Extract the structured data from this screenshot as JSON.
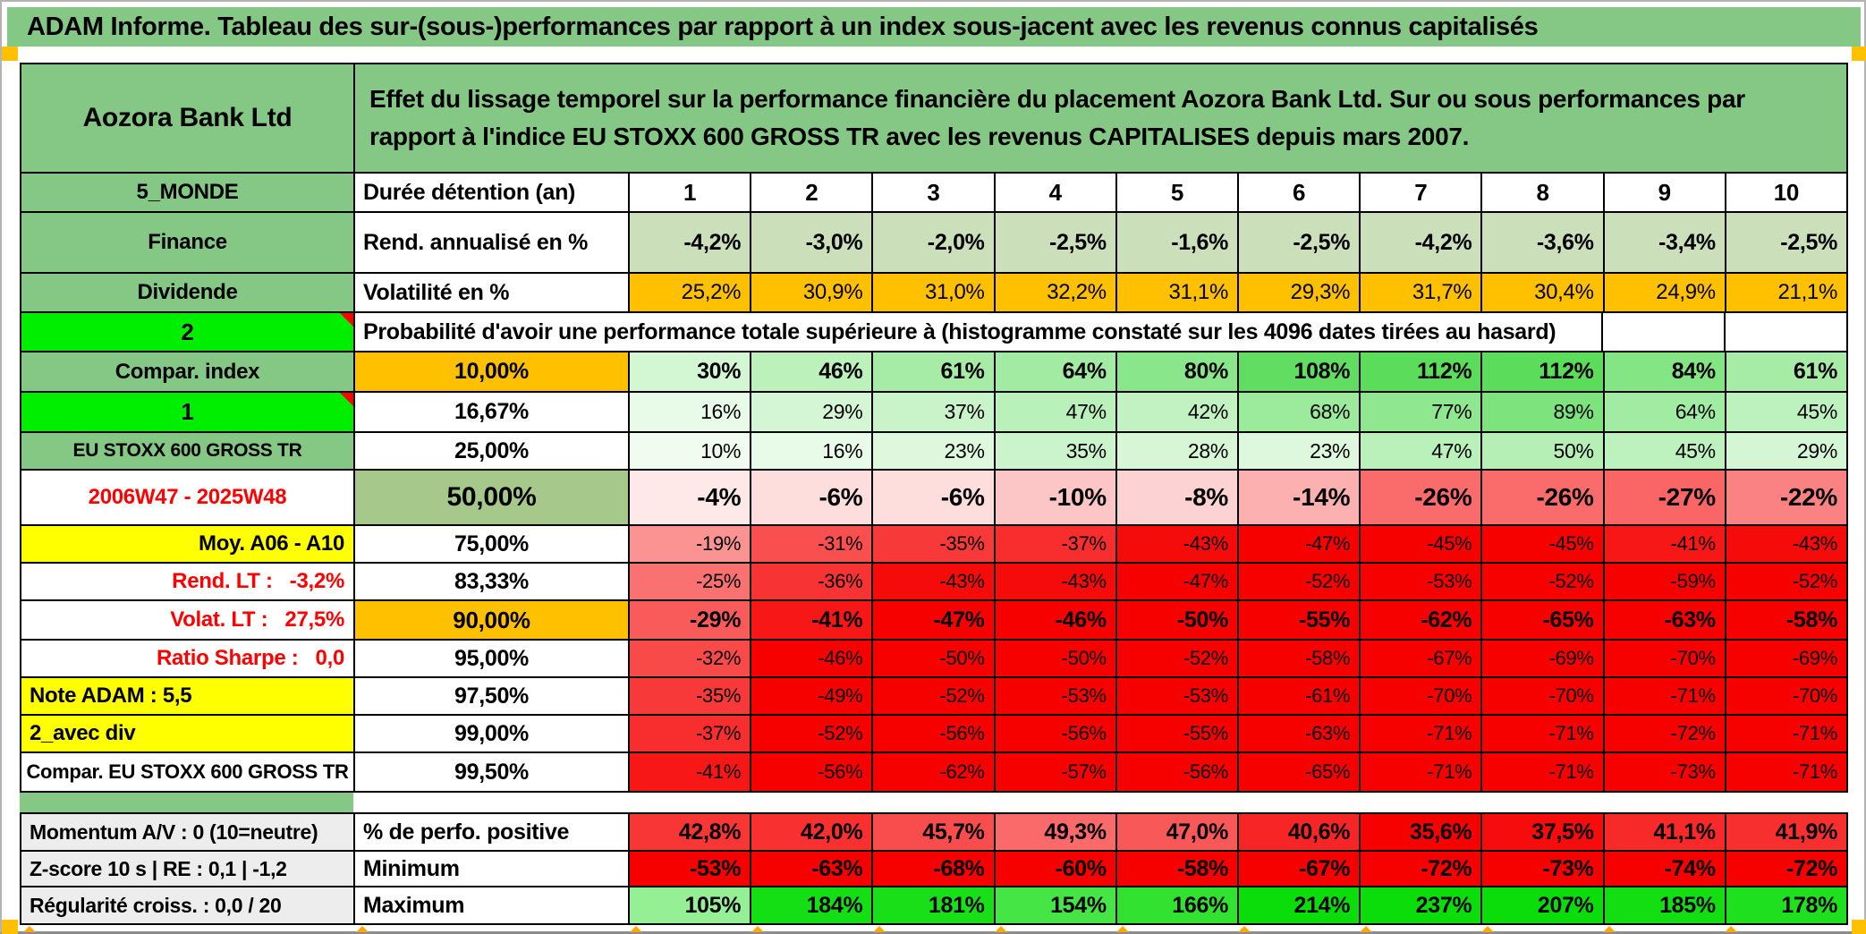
{
  "title": "ADAM Informe. Tableau des sur-(sous-)performances par rapport à un index sous-jacent avec les revenus connus capitalisés",
  "header": {
    "name": "Aozora Bank Ltd",
    "description": "Effet du lissage temporel sur la performance financière du placement Aozora Bank Ltd. Sur ou sous performances par rapport à l'indice EU STOXX 600 GROSS TR avec les revenus CAPITALISES depuis mars 2007."
  },
  "colors": {
    "green_header": "#85C785",
    "green_bright": "#00EE00",
    "green_band": "#A6C98B",
    "green_row": "#CBE0BA",
    "orange": "#FFC000",
    "yellow": "#FFFF00",
    "gray_label": "#EDEDED",
    "red_full": "#F60000",
    "green_pos_end": "#57DB57",
    "green_max_end": "#0ADD0A",
    "red_text": "#FF0000",
    "marker_orange": "#FFA800"
  },
  "rows": [
    {
      "key": "duration",
      "section": "main",
      "label": "5_MONDE",
      "labelBg": "medium",
      "metric": "Durée détention (an)",
      "metricAlign": "left",
      "fill": "white",
      "values": [
        "1",
        "2",
        "3",
        "4",
        "5",
        "6",
        "7",
        "8",
        "9",
        "10"
      ]
    },
    {
      "key": "annual",
      "section": "main",
      "label": "Finance",
      "labelBg": "medium",
      "metric": "Rend. annualisé en %",
      "metricAlign": "left",
      "fill": "lightgreen",
      "values": [
        "-4,2%",
        "-3,0%",
        "-2,0%",
        "-2,5%",
        "-1,6%",
        "-2,5%",
        "-4,2%",
        "-3,6%",
        "-3,4%",
        "-2,5%"
      ]
    },
    {
      "key": "vol",
      "section": "main",
      "label": "Dividende",
      "labelBg": "medium",
      "metric": "Volatilité en %",
      "metricAlign": "left",
      "fill": "orange",
      "values": [
        "25,2%",
        "30,9%",
        "31,0%",
        "32,2%",
        "31,1%",
        "29,3%",
        "31,7%",
        "30,4%",
        "24,9%",
        "21,1%"
      ]
    },
    {
      "key": "banner",
      "section": "main",
      "label": "2",
      "labelBg": "bright",
      "comment": true,
      "banner": "Probabilité d'avoir une performance totale supérieure à (histogramme constaté sur les 4096 dates tirées au hasard)"
    },
    {
      "key": "p10",
      "section": "main",
      "label": "Compar. index",
      "labelBg": "medium",
      "metric": "10,00%",
      "metricBg": "orange",
      "fill": "auto",
      "values": [
        "30%",
        "46%",
        "61%",
        "64%",
        "80%",
        "108%",
        "112%",
        "112%",
        "84%",
        "61%"
      ]
    },
    {
      "key": "p16",
      "section": "main",
      "label": "1",
      "labelBg": "bright",
      "comment": true,
      "metric": "16,67%",
      "fill": "auto",
      "values": [
        "16%",
        "29%",
        "37%",
        "47%",
        "42%",
        "68%",
        "77%",
        "89%",
        "64%",
        "45%"
      ]
    },
    {
      "key": "p25",
      "section": "main",
      "label": "EU STOXX 600 GROSS TR",
      "labelBg": "medium",
      "metric": "25,00%",
      "fill": "auto",
      "values": [
        "10%",
        "16%",
        "23%",
        "35%",
        "28%",
        "23%",
        "47%",
        "50%",
        "45%",
        "29%"
      ]
    },
    {
      "key": "p50",
      "section": "main",
      "label": "2006W47 - 2025W48",
      "labelColor": "red",
      "metric": "50,00%",
      "metricBg": "band",
      "fill": "auto",
      "values": [
        "-4%",
        "-6%",
        "-6%",
        "-10%",
        "-8%",
        "-14%",
        "-26%",
        "-26%",
        "-27%",
        "-22%"
      ]
    },
    {
      "key": "p75",
      "section": "main",
      "label": "Moy. A06 - A10",
      "labelBg": "yellow",
      "labelAlign": "right",
      "metric": "75,00%",
      "fill": "auto",
      "values": [
        "-19%",
        "-31%",
        "-35%",
        "-37%",
        "-43%",
        "-47%",
        "-45%",
        "-45%",
        "-41%",
        "-43%"
      ]
    },
    {
      "key": "p83",
      "section": "main",
      "label": "Rend. LT :   -3,2%",
      "labelColor": "red",
      "labelAlign": "right",
      "metric": "83,33%",
      "fill": "auto",
      "values": [
        "-25%",
        "-36%",
        "-43%",
        "-43%",
        "-47%",
        "-52%",
        "-53%",
        "-52%",
        "-59%",
        "-52%"
      ]
    },
    {
      "key": "p90",
      "section": "main",
      "label": "Volat. LT :   27,5%",
      "labelColor": "red",
      "labelAlign": "right",
      "metric": "90,00%",
      "metricBg": "orange",
      "fill": "auto",
      "values": [
        "-29%",
        "-41%",
        "-47%",
        "-46%",
        "-50%",
        "-55%",
        "-62%",
        "-65%",
        "-63%",
        "-58%"
      ]
    },
    {
      "key": "p95",
      "section": "main",
      "label": "Ratio Sharpe :   0,0",
      "labelColor": "red",
      "labelAlign": "right",
      "metric": "95,00%",
      "fill": "auto",
      "values": [
        "-32%",
        "-46%",
        "-50%",
        "-50%",
        "-52%",
        "-58%",
        "-67%",
        "-69%",
        "-70%",
        "-69%"
      ]
    },
    {
      "key": "p975",
      "section": "main",
      "label": "Note ADAM : 5,5",
      "labelBg": "yellow",
      "labelAlign": "left",
      "metric": "97,50%",
      "fill": "auto",
      "values": [
        "-35%",
        "-49%",
        "-52%",
        "-53%",
        "-53%",
        "-61%",
        "-70%",
        "-70%",
        "-71%",
        "-70%"
      ]
    },
    {
      "key": "p99",
      "section": "main",
      "label": "2_avec div",
      "labelBg": "yellow",
      "labelAlign": "left",
      "metric": "99,00%",
      "fill": "auto",
      "values": [
        "-37%",
        "-52%",
        "-56%",
        "-56%",
        "-55%",
        "-63%",
        "-71%",
        "-71%",
        "-72%",
        "-71%"
      ]
    },
    {
      "key": "p995",
      "section": "main",
      "label": "Compar. EU STOXX 600 GROSS TR",
      "metric": "99,50%",
      "fill": "auto",
      "values": [
        "-41%",
        "-56%",
        "-62%",
        "-57%",
        "-56%",
        "-65%",
        "-71%",
        "-71%",
        "-73%",
        "-71%"
      ]
    },
    {
      "key": "spacer",
      "section": "spacer"
    },
    {
      "key": "pos",
      "section": "bottom",
      "label": "Momentum A/V : 0 (10=neutre)",
      "labelBg": "gray",
      "labelAlign": "left",
      "metric": "% de perfo. positive",
      "metricAlign": "left",
      "fill": "pos",
      "values": [
        "42,8%",
        "42,0%",
        "45,7%",
        "49,3%",
        "47,0%",
        "40,6%",
        "35,6%",
        "37,5%",
        "41,1%",
        "41,9%"
      ]
    },
    {
      "key": "min",
      "section": "bottom",
      "label": "Z-score 10 s | RE : 0,1 | -1,2",
      "labelBg": "gray",
      "labelAlign": "left",
      "metric": "Minimum",
      "metricAlign": "left",
      "fill": "min",
      "values": [
        "-53%",
        "-63%",
        "-68%",
        "-60%",
        "-58%",
        "-67%",
        "-72%",
        "-73%",
        "-74%",
        "-72%"
      ]
    },
    {
      "key": "max",
      "section": "bottom",
      "label": "Régularité croiss. : 0,0 / 20",
      "labelBg": "gray",
      "labelAlign": "left",
      "metric": "Maximum",
      "metricAlign": "left",
      "fill": "max",
      "values": [
        "105%",
        "184%",
        "181%",
        "154%",
        "166%",
        "214%",
        "237%",
        "207%",
        "185%",
        "178%"
      ]
    }
  ]
}
